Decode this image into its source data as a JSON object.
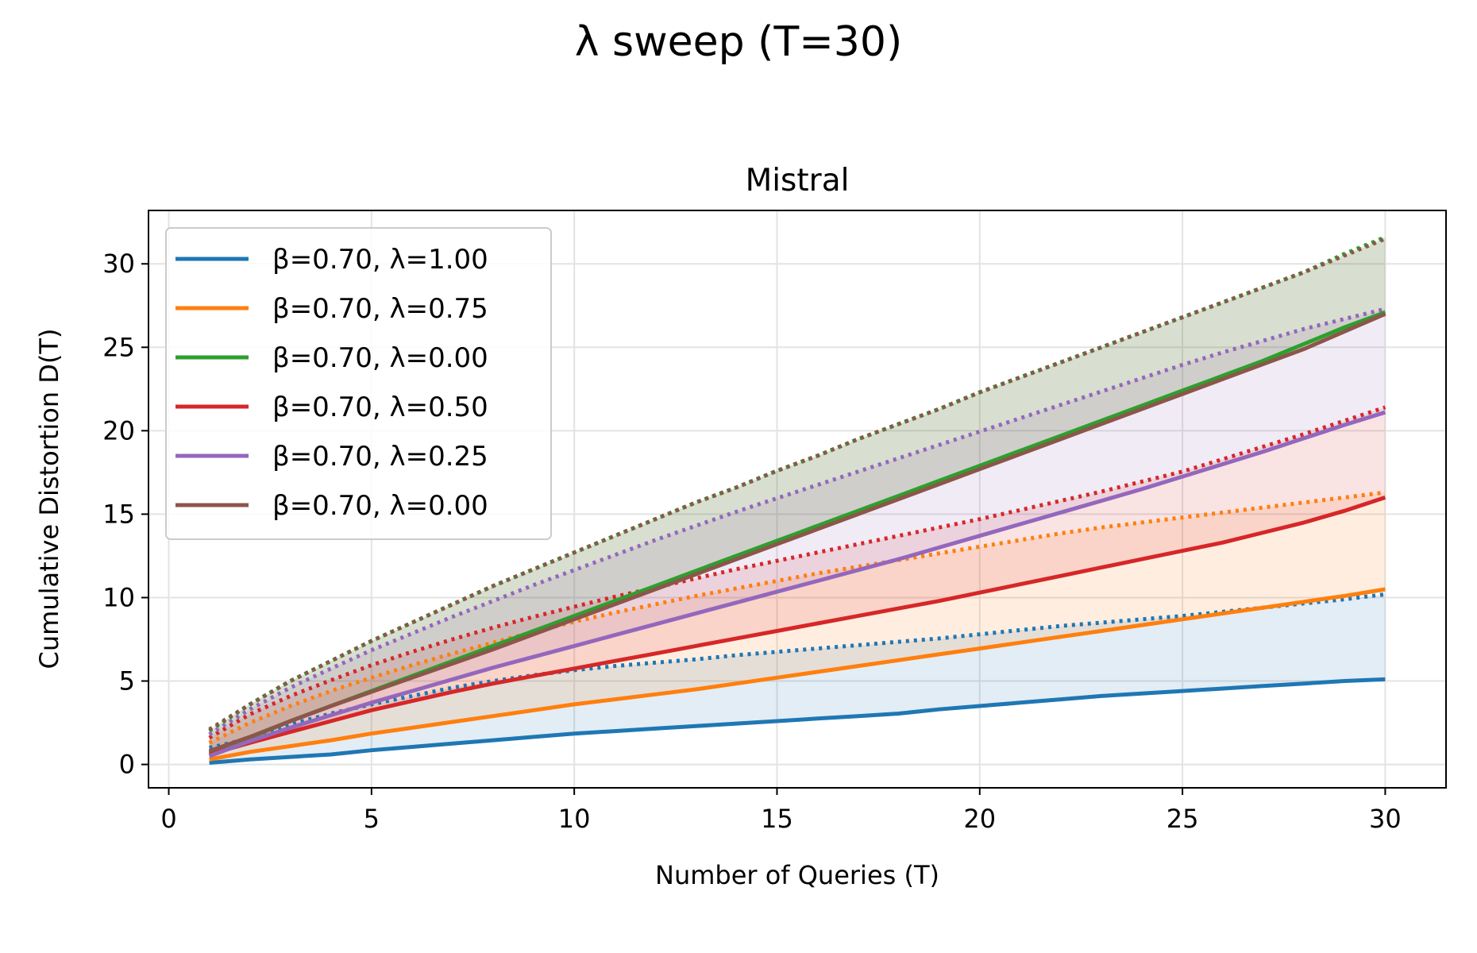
{
  "chart_data": {
    "type": "line",
    "suptitle": "λ sweep (T=30)",
    "title": "Mistral",
    "xlabel": "Number of Queries (T)",
    "ylabel": "Cumulative Distortion D(T)",
    "xlim": [
      -0.5,
      31.5
    ],
    "ylim": [
      -1.4,
      33.2
    ],
    "xticks": [
      0,
      5,
      10,
      15,
      20,
      25,
      30
    ],
    "yticks": [
      0,
      5,
      10,
      15,
      20,
      25,
      30
    ],
    "grid": true,
    "legend_position": "upper-left",
    "x": [
      1,
      2,
      3,
      4,
      5,
      6,
      7,
      8,
      9,
      10,
      11,
      12,
      13,
      14,
      15,
      16,
      17,
      18,
      19,
      20,
      21,
      22,
      23,
      24,
      25,
      26,
      27,
      28,
      29,
      30
    ],
    "series": [
      {
        "name": "β=0.70, λ=1.00",
        "color": "#1f77b4",
        "values": [
          0.1,
          0.3,
          0.45,
          0.6,
          0.85,
          1.05,
          1.25,
          1.45,
          1.65,
          1.85,
          2.0,
          2.15,
          2.3,
          2.45,
          2.6,
          2.75,
          2.9,
          3.05,
          3.3,
          3.5,
          3.7,
          3.9,
          4.1,
          4.25,
          4.4,
          4.55,
          4.7,
          4.85,
          5.0,
          5.1
        ],
        "reference": [
          1.0,
          1.55,
          2.4,
          3.05,
          3.6,
          4.1,
          4.6,
          5.0,
          5.35,
          5.65,
          5.9,
          6.1,
          6.3,
          6.55,
          6.75,
          6.95,
          7.15,
          7.35,
          7.55,
          7.8,
          8.05,
          8.3,
          8.5,
          8.7,
          8.9,
          9.15,
          9.4,
          9.65,
          9.9,
          10.2
        ]
      },
      {
        "name": "β=0.70, λ=0.75",
        "color": "#ff7f0e",
        "values": [
          0.3,
          0.75,
          1.1,
          1.45,
          1.85,
          2.2,
          2.55,
          2.9,
          3.25,
          3.6,
          3.9,
          4.2,
          4.5,
          4.85,
          5.2,
          5.55,
          5.9,
          6.25,
          6.6,
          6.95,
          7.3,
          7.65,
          8.0,
          8.35,
          8.7,
          9.05,
          9.4,
          9.75,
          10.1,
          10.5
        ],
        "reference": [
          1.3,
          2.5,
          3.5,
          4.4,
          5.2,
          5.95,
          6.65,
          7.3,
          7.95,
          8.55,
          9.1,
          9.6,
          10.1,
          10.55,
          11.0,
          11.45,
          11.85,
          12.25,
          12.65,
          13.05,
          13.45,
          13.85,
          14.2,
          14.5,
          14.8,
          15.1,
          15.4,
          15.7,
          16.0,
          16.3
        ]
      },
      {
        "name": "β=0.70, λ=0.00",
        "color": "#2ca02c",
        "values": [
          0.7,
          1.6,
          2.6,
          3.5,
          4.4,
          5.3,
          6.2,
          7.1,
          8.0,
          8.9,
          9.8,
          10.7,
          11.6,
          12.5,
          13.4,
          14.3,
          15.2,
          16.1,
          17.0,
          17.9,
          18.8,
          19.7,
          20.6,
          21.5,
          22.4,
          23.3,
          24.2,
          25.2,
          26.2,
          27.1
        ],
        "reference": [
          2.0,
          3.6,
          5.0,
          6.2,
          7.4,
          8.5,
          9.6,
          10.7,
          11.7,
          12.7,
          13.7,
          14.7,
          15.7,
          16.6,
          17.6,
          18.5,
          19.5,
          20.4,
          21.3,
          22.3,
          23.2,
          24.1,
          25.0,
          25.9,
          26.8,
          27.7,
          28.6,
          29.5,
          30.6,
          31.6
        ]
      },
      {
        "name": "β=0.70, λ=0.50",
        "color": "#d62728",
        "values": [
          0.6,
          1.3,
          1.95,
          2.6,
          3.25,
          3.8,
          4.35,
          4.85,
          5.3,
          5.75,
          6.2,
          6.65,
          7.1,
          7.55,
          8.0,
          8.45,
          8.9,
          9.35,
          9.8,
          10.3,
          10.8,
          11.3,
          11.8,
          12.3,
          12.8,
          13.3,
          13.9,
          14.5,
          15.2,
          16.0
        ],
        "reference": [
          1.6,
          3.0,
          4.1,
          5.05,
          5.95,
          6.75,
          7.5,
          8.2,
          8.85,
          9.45,
          10.05,
          10.6,
          11.15,
          11.7,
          12.2,
          12.7,
          13.2,
          13.7,
          14.2,
          14.7,
          15.25,
          15.8,
          16.35,
          16.95,
          17.55,
          18.3,
          19.05,
          19.8,
          20.6,
          21.4
        ]
      },
      {
        "name": "β=0.70, λ=0.25",
        "color": "#9467bd",
        "values": [
          0.5,
          1.4,
          2.2,
          2.95,
          3.7,
          4.4,
          5.1,
          5.8,
          6.45,
          7.1,
          7.75,
          8.4,
          9.05,
          9.7,
          10.35,
          11.0,
          11.65,
          12.3,
          13.0,
          13.7,
          14.4,
          15.1,
          15.8,
          16.5,
          17.25,
          18.0,
          18.75,
          19.55,
          20.35,
          21.1
        ],
        "reference": [
          1.8,
          3.3,
          4.6,
          5.75,
          6.85,
          7.85,
          8.85,
          9.8,
          10.75,
          11.65,
          12.55,
          13.45,
          14.3,
          15.15,
          15.95,
          16.75,
          17.55,
          18.35,
          19.15,
          19.95,
          20.75,
          21.55,
          22.35,
          23.15,
          23.95,
          24.7,
          25.4,
          26.1,
          26.7,
          27.3
        ]
      },
      {
        "name": "β=0.70, λ=0.00",
        "color": "#8c564b",
        "values": [
          0.8,
          1.65,
          2.6,
          3.5,
          4.35,
          5.2,
          6.05,
          6.9,
          7.8,
          8.7,
          9.6,
          10.5,
          11.4,
          12.3,
          13.2,
          14.1,
          15.0,
          15.9,
          16.8,
          17.7,
          18.6,
          19.5,
          20.4,
          21.3,
          22.2,
          23.1,
          24.0,
          24.9,
          25.95,
          27.0
        ],
        "reference": [
          2.1,
          3.6,
          5.0,
          6.2,
          7.4,
          8.5,
          9.6,
          10.7,
          11.7,
          12.7,
          13.7,
          14.7,
          15.7,
          16.6,
          17.6,
          18.5,
          19.5,
          20.4,
          21.3,
          22.3,
          23.2,
          24.1,
          25.0,
          25.9,
          26.8,
          27.7,
          28.6,
          29.5,
          30.5,
          31.5
        ]
      }
    ]
  }
}
